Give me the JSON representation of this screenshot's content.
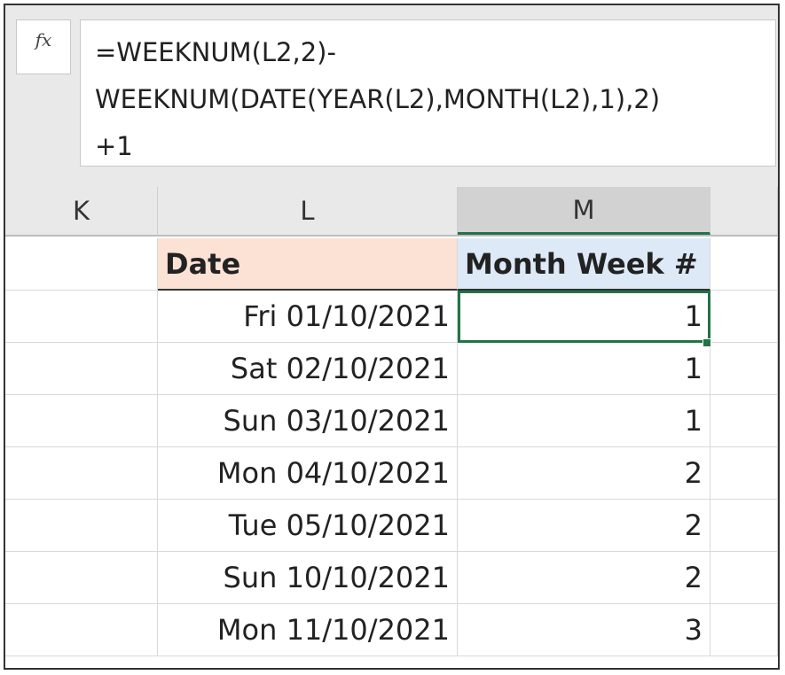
{
  "formula_bar": {
    "fx_label": "fx",
    "formula_lines": [
      "=WEEKNUM(L2,2)-",
      "WEEKNUM(DATE(YEAR(L2),MONTH(L2),1),2)",
      "+1"
    ]
  },
  "columns": {
    "k": "K",
    "l": "L",
    "m": "M"
  },
  "table": {
    "headers": {
      "date": "Date",
      "week": "Month Week #"
    },
    "rows": [
      {
        "date": "Fri 01/10/2021",
        "week": "1"
      },
      {
        "date": "Sat 02/10/2021",
        "week": "1"
      },
      {
        "date": "Sun 03/10/2021",
        "week": "1"
      },
      {
        "date": "Mon 04/10/2021",
        "week": "2"
      },
      {
        "date": "Tue 05/10/2021",
        "week": "2"
      },
      {
        "date": "Sun 10/10/2021",
        "week": "2"
      },
      {
        "date": "Mon 11/10/2021",
        "week": "3"
      }
    ]
  },
  "colors": {
    "selection": "#217346",
    "date_header_fill": "#fbe2d5",
    "week_header_fill": "#dde9f7"
  }
}
